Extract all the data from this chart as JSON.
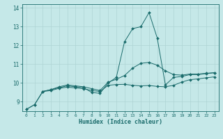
{
  "xlabel": "Humidex (Indice chaleur)",
  "bg_color": "#c5e8e8",
  "line_color": "#1a6b6b",
  "grid_color": "#afd4d4",
  "xlim": [
    -0.5,
    23.5
  ],
  "ylim": [
    8.5,
    14.2
  ],
  "yticks": [
    9,
    10,
    11,
    12,
    13,
    14
  ],
  "xticks": [
    0,
    1,
    2,
    3,
    4,
    5,
    6,
    7,
    8,
    9,
    10,
    11,
    12,
    13,
    14,
    15,
    16,
    17,
    18,
    19,
    20,
    21,
    22,
    23
  ],
  "lines": [
    {
      "x": [
        0,
        1,
        2,
        3,
        4,
        5,
        6,
        7,
        8,
        9,
        10,
        11,
        12,
        13,
        14,
        15,
        16,
        17,
        18,
        19,
        20,
        21,
        22,
        23
      ],
      "y": [
        8.6,
        8.85,
        9.55,
        9.65,
        9.75,
        9.85,
        9.8,
        9.75,
        9.5,
        9.45,
        10.0,
        10.3,
        12.2,
        12.9,
        13.0,
        13.75,
        12.4,
        9.9,
        10.3,
        10.35,
        10.45,
        10.45,
        10.5,
        10.55
      ]
    },
    {
      "x": [
        0,
        1,
        2,
        3,
        4,
        5,
        6,
        7,
        8,
        9,
        10,
        11,
        12,
        13,
        14,
        15,
        16,
        17,
        18,
        19,
        20,
        21,
        22,
        23
      ],
      "y": [
        8.6,
        8.85,
        9.55,
        9.65,
        9.8,
        9.9,
        9.85,
        9.8,
        9.7,
        9.6,
        10.05,
        10.2,
        10.4,
        10.8,
        11.05,
        11.1,
        10.95,
        10.65,
        10.45,
        10.42,
        10.48,
        10.48,
        10.52,
        10.55
      ]
    },
    {
      "x": [
        2,
        3,
        4,
        5,
        6,
        7,
        8,
        9,
        10,
        11,
        12,
        13,
        14,
        15,
        16,
        17,
        18,
        19,
        20,
        21,
        22,
        23
      ],
      "y": [
        9.55,
        9.6,
        9.72,
        9.78,
        9.74,
        9.7,
        9.6,
        9.55,
        9.88,
        9.92,
        9.93,
        9.88,
        9.85,
        9.87,
        9.82,
        9.8,
        9.88,
        10.05,
        10.18,
        10.22,
        10.28,
        10.33
      ]
    }
  ]
}
